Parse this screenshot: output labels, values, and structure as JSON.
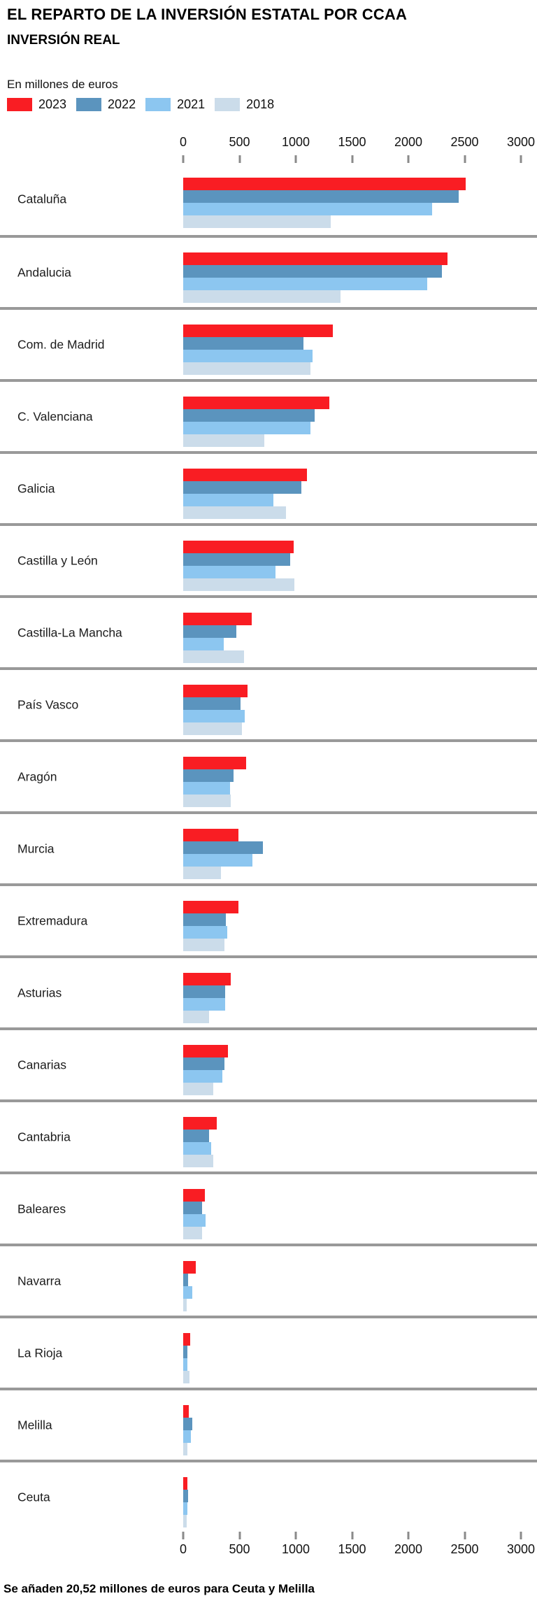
{
  "header": {
    "title": "EL REPARTO DE LA INVERSIÓN ESTATAL POR CCAA",
    "subtitle": "INVERSIÓN REAL",
    "units_note": "En millones de euros"
  },
  "legend": [
    {
      "label": "2023",
      "color": "#f91d23"
    },
    {
      "label": "2022",
      "color": "#5b94be"
    },
    {
      "label": "2021",
      "color": "#8cc6f0"
    },
    {
      "label": "2018",
      "color": "#cbdcea"
    }
  ],
  "footer": {
    "note": "Se añaden 20,52 millones de euros para Ceuta y Melilla"
  },
  "chart_data": {
    "type": "bar",
    "orientation": "horizontal",
    "title": "EL REPARTO DE LA INVERSIÓN ESTATAL POR CCAA",
    "subtitle": "INVERSIÓN REAL",
    "xlabel": "En millones de euros",
    "ylabel": "",
    "xlim": [
      0,
      3000
    ],
    "xticks": [
      0,
      500,
      1000,
      1500,
      2000,
      2500,
      3000
    ],
    "grid": false,
    "legend_position": "top",
    "series_names": [
      "2023",
      "2022",
      "2021",
      "2018"
    ],
    "series_colors": [
      "#f91d23",
      "#5b94be",
      "#8cc6f0",
      "#cbdcea"
    ],
    "categories": [
      "Cataluña",
      "Andalucia",
      "Com. de Madrid",
      "C. Valenciana",
      "Galicia",
      "Castilla y León",
      "Castilla-La Mancha",
      "País Vasco",
      "Aragón",
      "Murcia",
      "Extremadura",
      "Asturias",
      "Canarias",
      "Cantabria",
      "Baleares",
      "Navarra",
      "La Rioja",
      "Melilla",
      "Ceuta"
    ],
    "series": [
      {
        "name": "2023",
        "values": [
          2510,
          2350,
          1330,
          1300,
          1100,
          980,
          610,
          570,
          560,
          490,
          490,
          425,
          400,
          300,
          190,
          110,
          65,
          50,
          40
        ]
      },
      {
        "name": "2022",
        "values": [
          2450,
          2300,
          1070,
          1170,
          1050,
          950,
          470,
          510,
          450,
          710,
          380,
          375,
          365,
          230,
          170,
          45,
          35,
          80,
          45
        ]
      },
      {
        "name": "2021",
        "values": [
          2210,
          2170,
          1150,
          1130,
          800,
          820,
          360,
          545,
          415,
          615,
          390,
          370,
          350,
          250,
          200,
          80,
          40,
          70,
          35
        ]
      },
      {
        "name": "2018",
        "values": [
          1310,
          1400,
          1130,
          720,
          910,
          990,
          540,
          520,
          425,
          335,
          365,
          230,
          270,
          265,
          170,
          30,
          55,
          40,
          30
        ]
      }
    ],
    "annotation": "Se añaden 20,52 millones de euros para Ceuta y Melilla"
  }
}
